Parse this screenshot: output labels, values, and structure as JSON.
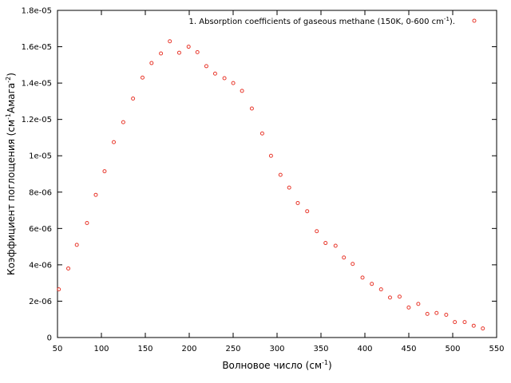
{
  "chart_data": {
    "type": "scatter",
    "xlabel": "Волновое число (см",
    "xlabel_sup": "-1",
    "xlabel_end": ")",
    "ylabel": "Коэффициент поглощения (см",
    "ylabel_sup1": "-1",
    "ylabel_mid": "Амага",
    "ylabel_sup2": "-2",
    "ylabel_end": ")",
    "xlim": [
      50,
      550
    ],
    "ylim": [
      0,
      1.8e-05
    ],
    "x_ticks": [
      "50",
      "100",
      "150",
      "200",
      "250",
      "300",
      "350",
      "400",
      "450",
      "500",
      "550"
    ],
    "y_ticks": [
      "0",
      "2e-06",
      "4e-06",
      "6e-06",
      "8e-06",
      "1e-05",
      "1.2e-05",
      "1.4e-05",
      "1.6e-05",
      "1.8e-05"
    ],
    "grid": false,
    "legend_position": "top-right",
    "marker_color": "#e8382c",
    "series": [
      {
        "name": "1. Absorption coefficients of gaseous methane (150K, 0-600 cm",
        "name_sup": "-1",
        "name_end": ").",
        "x": [
          51.5,
          62.3,
          72.0,
          83.6,
          93.6,
          103.6,
          114.1,
          124.9,
          136.0,
          146.8,
          157.1,
          167.8,
          177.9,
          188.6,
          199.3,
          209.3,
          219.5,
          229.5,
          240.1,
          250.1,
          260.1,
          271.3,
          283.1,
          293.1,
          303.9,
          313.8,
          323.6,
          334.3,
          345.2,
          355.2,
          366.6,
          376.1,
          386.1,
          397.3,
          407.9,
          418.4,
          428.6,
          439.5,
          449.9,
          460.8,
          471.1,
          481.6,
          492.6,
          502.4,
          513.6,
          523.9,
          534.3
        ],
        "y": [
          2.65e-06,
          3.8e-06,
          5.1e-06,
          6.3e-06,
          7.85e-06,
          9.15e-06,
          1.075e-05,
          1.185e-05,
          1.315e-05,
          1.43e-05,
          1.51e-05,
          1.563e-05,
          1.63e-05,
          1.567e-05,
          1.6e-05,
          1.57e-05,
          1.493e-05,
          1.452e-05,
          1.427e-05,
          1.4e-05,
          1.357e-05,
          1.26e-05,
          1.123e-05,
          1e-05,
          8.95e-06,
          8.25e-06,
          7.4e-06,
          6.95e-06,
          5.85e-06,
          5.2e-06,
          5.05e-06,
          4.4e-06,
          4.05e-06,
          3.3e-06,
          2.95e-06,
          2.65e-06,
          2.2e-06,
          2.25e-06,
          1.65e-06,
          1.85e-06,
          1.3e-06,
          1.35e-06,
          1.25e-06,
          8.5e-07,
          8.5e-07,
          6.5e-07,
          5e-07
        ]
      }
    ]
  }
}
